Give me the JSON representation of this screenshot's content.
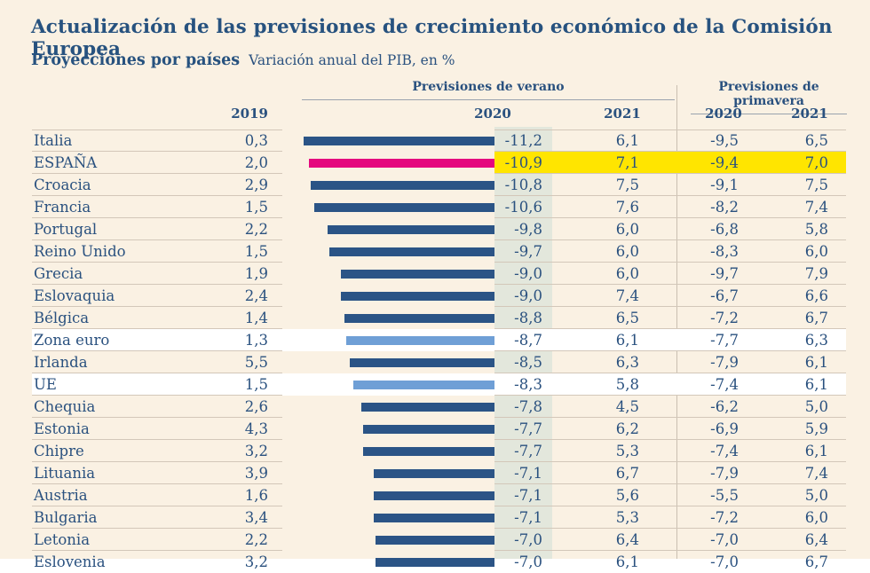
{
  "header": {
    "title": "Actualización de las previsiones de crecimiento económico de la Comisión Europea",
    "subtitle": "Proyecciones por países",
    "unit_note": "Variación anual del PIB, en %",
    "col_2019": "2019",
    "group_verano": {
      "label": "Previsiones de verano",
      "col_2020": "2020",
      "col_2021": "2021"
    },
    "group_primavera": {
      "label": "Previsiones de primavera",
      "col_2020": "2020",
      "col_2021": "2021"
    }
  },
  "colors": {
    "background": "#FAF1E3",
    "text_blue": "#2A517F",
    "bar_dark_blue": "#2B5486",
    "bar_light_blue": "#6F9FD6",
    "bar_pink_espana": "#E5087E",
    "highlight_yellow": "#FFE500",
    "verano2020_column_band": "#E3E7DC",
    "white_row": "#FFFFFF",
    "hairline": "#D3C7B9"
  },
  "chart_data": {
    "type": "bar",
    "title": "Actualización de las previsiones de crecimiento económico de la Comisión Europea",
    "subtitle": "Proyecciones por países",
    "unit": "Variación anual del PIB, en %",
    "bars_depict": "Previsiones de verano 2020 (valores negativos, barras hacia la izquierda hasta el eje cero)",
    "bar_axis_max_abs": 11.2,
    "legend_position": "none",
    "grid": "row hairlines only",
    "columns": [
      "2019",
      "Previsiones de verano 2020",
      "Previsiones de verano 2021",
      "Previsiones de primavera 2020",
      "Previsiones de primavera 2021"
    ],
    "rows": [
      {
        "pais": "Italia",
        "y2019": "0,3",
        "v2020": "-11,2",
        "v2021": "6,1",
        "p2020": "-9,5",
        "p2021": "6,5",
        "style": "default"
      },
      {
        "pais": "ESPAÑA",
        "y2019": "2,0",
        "v2020": "-10,9",
        "v2021": "7,1",
        "p2020": "-9,4",
        "p2021": "7,0",
        "style": "espana"
      },
      {
        "pais": "Croacia",
        "y2019": "2,9",
        "v2020": "-10,8",
        "v2021": "7,5",
        "p2020": "-9,1",
        "p2021": "7,5",
        "style": "default"
      },
      {
        "pais": "Francia",
        "y2019": "1,5",
        "v2020": "-10,6",
        "v2021": "7,6",
        "p2020": "-8,2",
        "p2021": "7,4",
        "style": "default"
      },
      {
        "pais": "Portugal",
        "y2019": "2,2",
        "v2020": "-9,8",
        "v2021": "6,0",
        "p2020": "-6,8",
        "p2021": "5,8",
        "style": "default"
      },
      {
        "pais": "Reino Unido",
        "y2019": "1,5",
        "v2020": "-9,7",
        "v2021": "6,0",
        "p2020": "-8,3",
        "p2021": "6,0",
        "style": "default"
      },
      {
        "pais": "Grecia",
        "y2019": "1,9",
        "v2020": "-9,0",
        "v2021": "6,0",
        "p2020": "-9,7",
        "p2021": "7,9",
        "style": "default"
      },
      {
        "pais": "Eslovaquia",
        "y2019": "2,4",
        "v2020": "-9,0",
        "v2021": "7,4",
        "p2020": "-6,7",
        "p2021": "6,6",
        "style": "default"
      },
      {
        "pais": "Bélgica",
        "y2019": "1,4",
        "v2020": "-8,8",
        "v2021": "6,5",
        "p2020": "-7,2",
        "p2021": "6,7",
        "style": "default"
      },
      {
        "pais": "Zona euro",
        "y2019": "1,3",
        "v2020": "-8,7",
        "v2021": "6,1",
        "p2020": "-7,7",
        "p2021": "6,3",
        "style": "aggregate"
      },
      {
        "pais": "Irlanda",
        "y2019": "5,5",
        "v2020": "-8,5",
        "v2021": "6,3",
        "p2020": "-7,9",
        "p2021": "6,1",
        "style": "default"
      },
      {
        "pais": "UE",
        "y2019": "1,5",
        "v2020": "-8,3",
        "v2021": "5,8",
        "p2020": "-7,4",
        "p2021": "6,1",
        "style": "aggregate"
      },
      {
        "pais": "Chequia",
        "y2019": "2,6",
        "v2020": "-7,8",
        "v2021": "4,5",
        "p2020": "-6,2",
        "p2021": "5,0",
        "style": "default"
      },
      {
        "pais": "Estonia",
        "y2019": "4,3",
        "v2020": "-7,7",
        "v2021": "6,2",
        "p2020": "-6,9",
        "p2021": "5,9",
        "style": "default"
      },
      {
        "pais": "Chipre",
        "y2019": "3,2",
        "v2020": "-7,7",
        "v2021": "5,3",
        "p2020": "-7,4",
        "p2021": "6,1",
        "style": "default"
      },
      {
        "pais": "Lituania",
        "y2019": "3,9",
        "v2020": "-7,1",
        "v2021": "6,7",
        "p2020": "-7,9",
        "p2021": "7,4",
        "style": "default"
      },
      {
        "pais": "Austria",
        "y2019": "1,6",
        "v2020": "-7,1",
        "v2021": "5,6",
        "p2020": "-5,5",
        "p2021": "5,0",
        "style": "default"
      },
      {
        "pais": "Bulgaria",
        "y2019": "3,4",
        "v2020": "-7,1",
        "v2021": "5,3",
        "p2020": "-7,2",
        "p2021": "6,0",
        "style": "default"
      },
      {
        "pais": "Letonia",
        "y2019": "2,2",
        "v2020": "-7,0",
        "v2021": "6,4",
        "p2020": "-7,0",
        "p2021": "6,4",
        "style": "default"
      }
    ],
    "partial_row": {
      "note": "última fila cortada por el borde inferior de la imagen; sólo se ve la parte superior",
      "pais": "Eslovenia",
      "y2019": "3,2",
      "v2020": "-7,0",
      "v2021": "6,1",
      "p2020": "-7,0",
      "p2021": "6,7",
      "cropped": true,
      "style": "default"
    }
  }
}
